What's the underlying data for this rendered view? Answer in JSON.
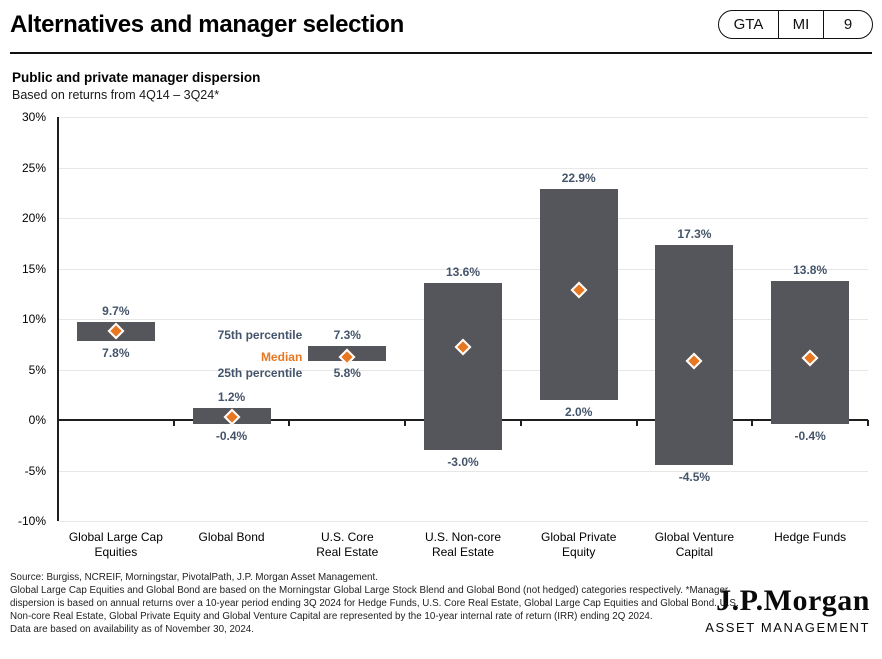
{
  "header": {
    "title": "Alternatives and manager selection",
    "badges": [
      "GTA",
      "MI",
      "9"
    ]
  },
  "chart": {
    "title": "Public and private manager dispersion",
    "subtitle": "Based on returns from 4Q14 – 3Q24*",
    "legend": {
      "p75": "75th percentile",
      "median": "Median",
      "p25": "25th percentile"
    }
  },
  "chart_data": {
    "type": "bar",
    "subtype": "floating-range-bar-with-median-marker",
    "title": "Public and private manager dispersion",
    "subtitle": "Based on returns from 4Q14 – 3Q24*",
    "xlabel": "",
    "ylabel": "",
    "ylim": [
      -10,
      30
    ],
    "ytick_step": 5,
    "ytick_suffix": "%",
    "grid": true,
    "legend_anchor_index": 2,
    "categories": [
      "Global Large Cap\nEquities",
      "Global Bond",
      "U.S. Core\nReal Estate",
      "U.S. Non-core\nReal Estate",
      "Global Private\nEquity",
      "Global Venture\nCapital",
      "Hedge Funds"
    ],
    "series": [
      {
        "name": "75th percentile",
        "values": [
          9.7,
          1.2,
          7.3,
          13.6,
          22.9,
          17.3,
          13.8
        ]
      },
      {
        "name": "Median (estimated from markers)",
        "values": [
          8.8,
          0.3,
          6.2,
          7.2,
          12.9,
          5.8,
          6.1
        ]
      },
      {
        "name": "25th percentile",
        "values": [
          7.8,
          -0.4,
          5.8,
          -3.0,
          2.0,
          -4.5,
          -0.4
        ]
      }
    ],
    "colors": {
      "bar": "#54565B",
      "median_marker": "#E87722",
      "value_label": "#44546A",
      "gridline": "#E7E7E7",
      "axis": "#1F1F1F"
    }
  },
  "footer": {
    "source": "Source: Burgiss, NCREIF, Morningstar, PivotalPath, J.P. Morgan Asset Management.",
    "disclosure": "Global Large Cap Equities and Global Bond are based on the Morningstar Global Large Stock Blend and Global Bond (not hedged) categories respectively. *Manager dispersion is based on annual returns over a 10-year period ending 3Q 2024 for Hedge Funds, U.S. Core Real Estate, Global Large Cap Equities and Global Bond. U.S. Non-core Real Estate, Global Private Equity and Global Venture Capital are represented by the 10-year internal rate of return (IRR) ending 2Q 2024.",
    "availability": "Data are based on availability as of November 30, 2024."
  },
  "logo": {
    "name": "J.P.Morgan",
    "sub": "ASSET MANAGEMENT"
  }
}
